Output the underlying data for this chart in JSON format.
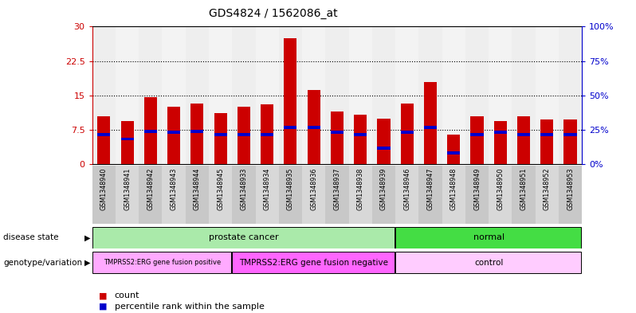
{
  "title": "GDS4824 / 1562086_at",
  "samples": [
    "GSM1348940",
    "GSM1348941",
    "GSM1348942",
    "GSM1348943",
    "GSM1348944",
    "GSM1348945",
    "GSM1348933",
    "GSM1348934",
    "GSM1348935",
    "GSM1348936",
    "GSM1348937",
    "GSM1348938",
    "GSM1348939",
    "GSM1348946",
    "GSM1348947",
    "GSM1348948",
    "GSM1348949",
    "GSM1348950",
    "GSM1348951",
    "GSM1348952",
    "GSM1348953"
  ],
  "counts": [
    10.5,
    9.5,
    14.7,
    12.5,
    13.2,
    11.2,
    12.5,
    13.0,
    27.5,
    16.2,
    11.5,
    10.8,
    10.0,
    13.2,
    18.0,
    6.5,
    10.5,
    9.5,
    10.5,
    9.8,
    9.8
  ],
  "percentile_ranks": [
    6.5,
    5.5,
    7.2,
    7.0,
    7.2,
    6.5,
    6.5,
    6.5,
    8.0,
    8.0,
    7.0,
    6.5,
    3.5,
    7.0,
    8.0,
    2.5,
    6.5,
    7.0,
    6.5,
    6.5,
    6.5
  ],
  "ylim_left": [
    0,
    30
  ],
  "ylim_right": [
    0,
    100
  ],
  "yticks_left": [
    0,
    7.5,
    15,
    22.5,
    30
  ],
  "yticks_right": [
    0,
    25,
    50,
    75,
    100
  ],
  "ytick_labels_left": [
    "0",
    "7.5",
    "15",
    "22.5",
    "30"
  ],
  "ytick_labels_right": [
    "0%",
    "25%",
    "50%",
    "75%",
    "100%"
  ],
  "bar_color": "#cc0000",
  "marker_color": "#0000cc",
  "bar_width": 0.55,
  "col_colors": [
    "#c8c8c8",
    "#d8d8d8"
  ],
  "disease_state_groups": [
    {
      "label": "prostate cancer",
      "start": 0,
      "end": 12,
      "color": "#aaeaaa"
    },
    {
      "label": "normal",
      "start": 13,
      "end": 20,
      "color": "#44dd44"
    }
  ],
  "genotype_groups": [
    {
      "label": "TMPRSS2:ERG gene fusion positive",
      "start": 0,
      "end": 5,
      "color": "#ffaaff"
    },
    {
      "label": "TMPRSS2:ERG gene fusion negative",
      "start": 6,
      "end": 12,
      "color": "#ff66ff"
    },
    {
      "label": "control",
      "start": 13,
      "end": 20,
      "color": "#ffccff"
    }
  ],
  "legend_count_label": "count",
  "legend_percentile_label": "percentile rank within the sample",
  "disease_state_label": "disease state",
  "genotype_label": "genotype/variation",
  "left_axis_color": "#cc0000",
  "right_axis_color": "#0000cc"
}
